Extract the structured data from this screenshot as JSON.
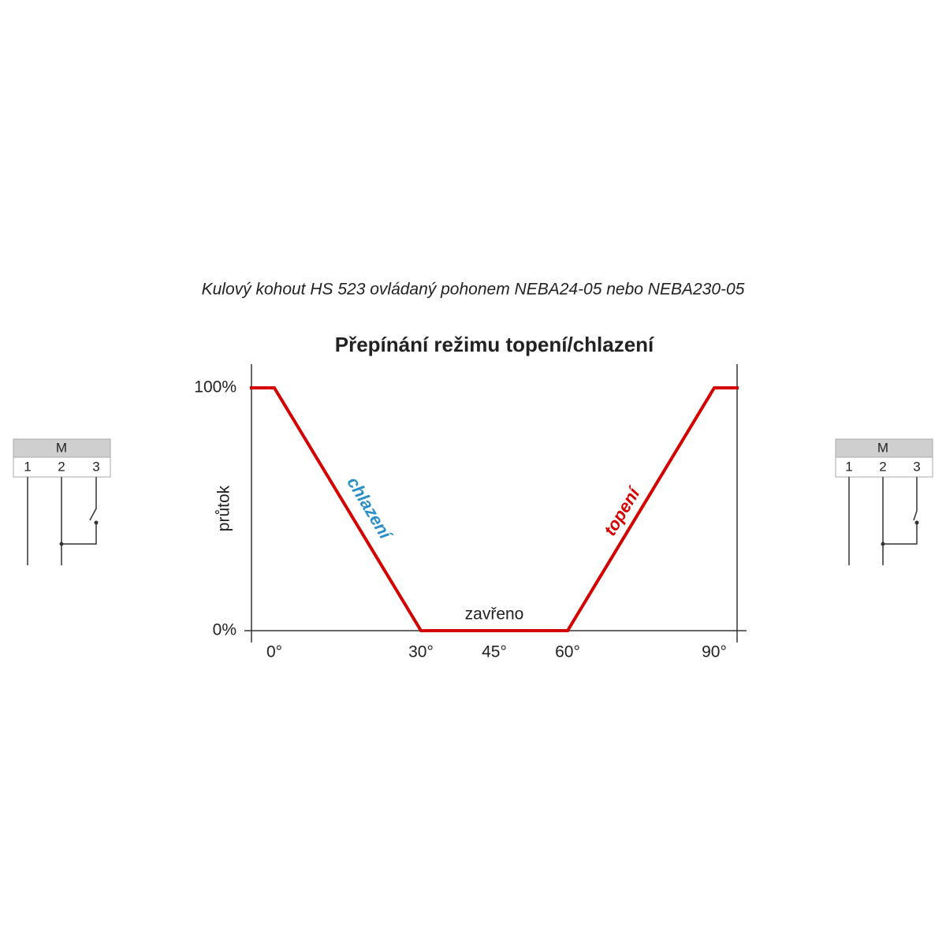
{
  "chart_data": {
    "type": "line",
    "subtitle": "Kulový kohout HS 523 ovládaný pohonem NEBA24-05 nebo NEBA230-05",
    "title": "Přepínání režimu topení/chlazení",
    "y_label": "průtok",
    "x": [
      -5,
      0,
      30,
      60,
      90,
      95
    ],
    "series": [
      {
        "color": "#d40000",
        "values": [
          100,
          100,
          0,
          0,
          100,
          100
        ]
      }
    ],
    "xlim": [
      -5,
      95
    ],
    "ylim": [
      0,
      110
    ],
    "xticks": [
      {
        "value": 0,
        "label": "0°"
      },
      {
        "value": 30,
        "label": "30°"
      },
      {
        "value": 45,
        "label": "45°"
      },
      {
        "value": 60,
        "label": "60°"
      },
      {
        "value": 90,
        "label": "90°"
      }
    ],
    "yticks": [
      {
        "value": 0,
        "label": "0%"
      },
      {
        "value": 100,
        "label": "100%"
      }
    ],
    "grid": false,
    "annotations": [
      {
        "text": "chlazení",
        "color": "#2a8fc8"
      },
      {
        "text": "topení",
        "color": "#d40000"
      },
      {
        "text": "zavřeno",
        "color": "#222222"
      }
    ]
  },
  "wiring_diagrams": [
    {
      "header": "M",
      "terminals": [
        "1",
        "2",
        "3"
      ]
    },
    {
      "header": "M",
      "terminals": [
        "1",
        "2",
        "3"
      ]
    }
  ]
}
